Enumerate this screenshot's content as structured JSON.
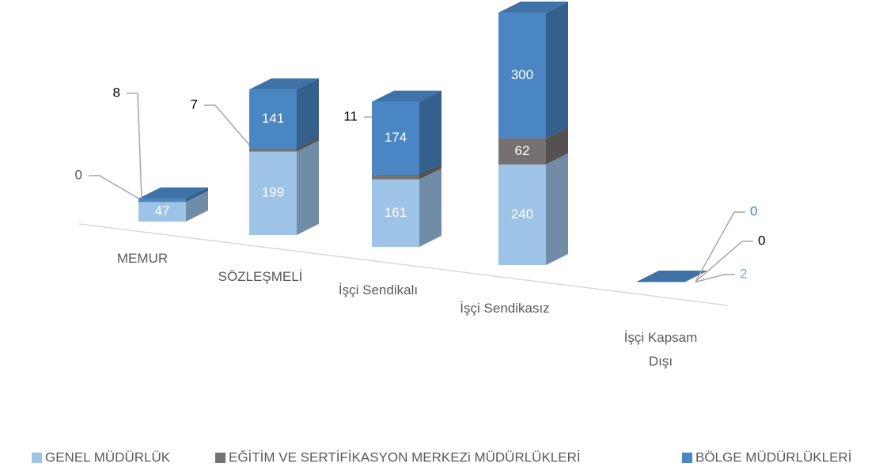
{
  "chart_data": {
    "type": "bar3d_stacked",
    "categories": [
      "MEMUR",
      "SÖZLEŞMELİ",
      "İşçi Sendikalı",
      "İşçi Sendikasız",
      "İşçi Kapsam Dışı"
    ],
    "series": [
      {
        "name": "GENEL MÜDÜRLÜK",
        "color": "#9dc3e6",
        "values": [
          47,
          199,
          161,
          240,
          2
        ]
      },
      {
        "name": "EĞİTİM VE SERTİFİKASYON MERKEZi MÜDÜRLÜKLERİ",
        "color": "#767171",
        "values": [
          0,
          7,
          11,
          62,
          0
        ]
      },
      {
        "name": "BÖLGE MÜDÜRLÜKLERİ",
        "color": "#4a86c4",
        "values": [
          8,
          141,
          174,
          300,
          0
        ]
      }
    ],
    "legend": "bottom"
  }
}
